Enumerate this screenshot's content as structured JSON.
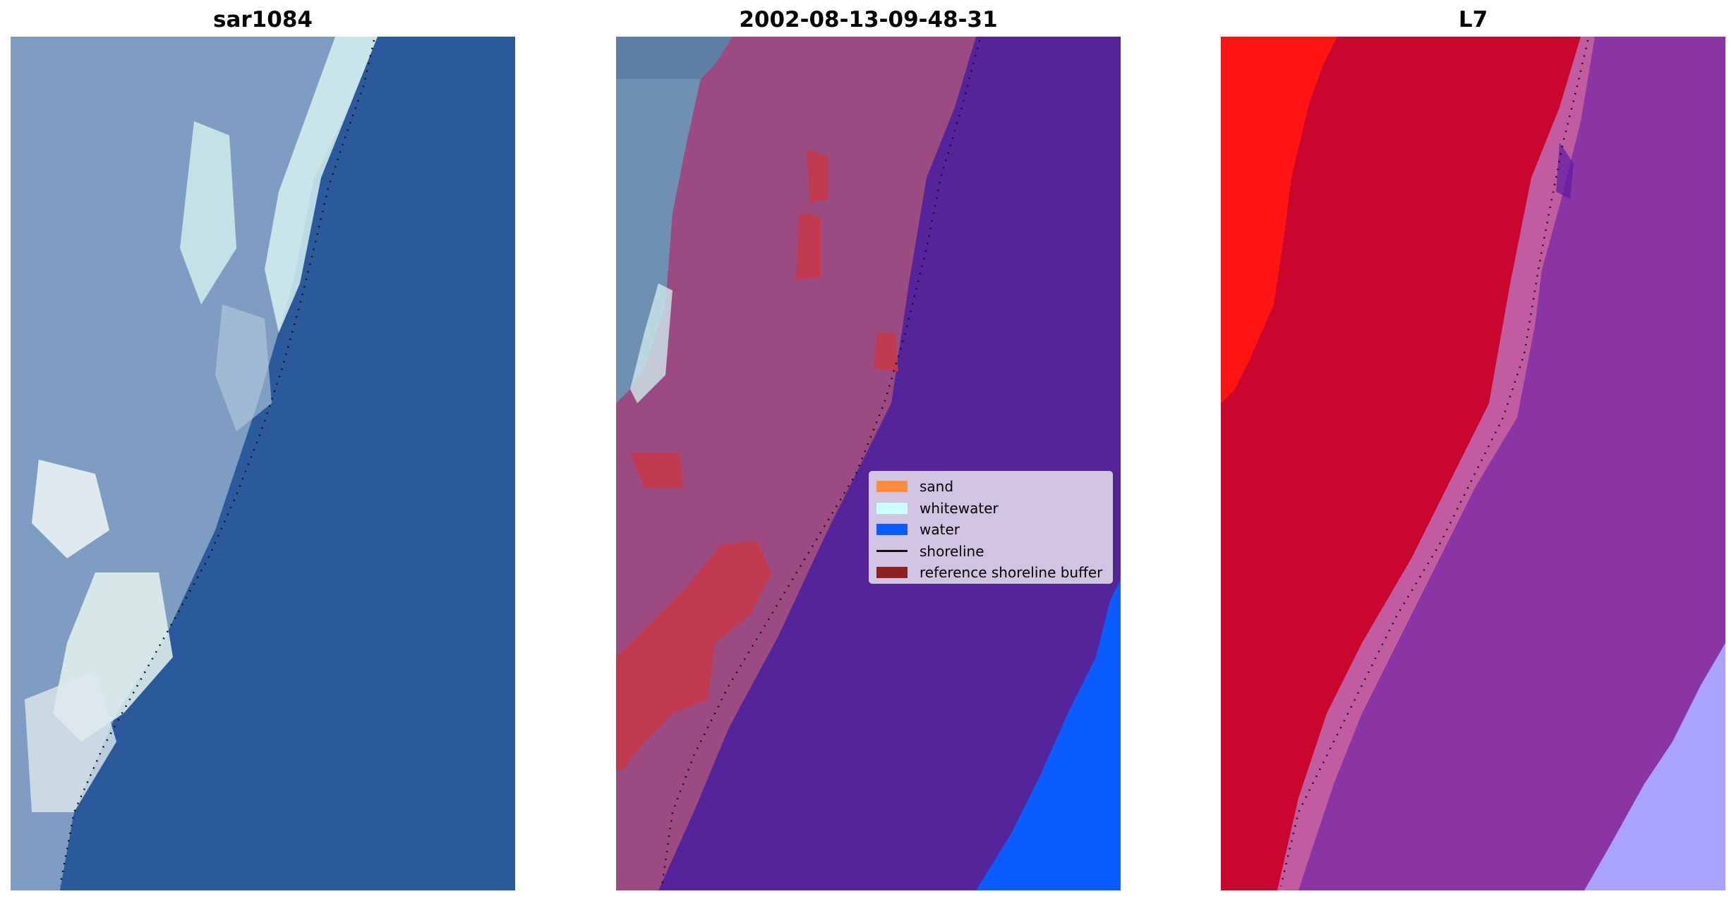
{
  "panels": [
    {
      "title": "sar1084",
      "kind": "rgb"
    },
    {
      "title": "2002-08-13-09-48-31",
      "kind": "classified"
    },
    {
      "title": "L7",
      "kind": "index"
    }
  ],
  "legend": {
    "items": [
      {
        "label": "sand",
        "color": "#ff8c3a",
        "kind": "patch"
      },
      {
        "label": "whitewater",
        "color": "#ccffff",
        "kind": "patch"
      },
      {
        "label": "water",
        "color": "#0a5cff",
        "kind": "patch"
      },
      {
        "label": "shoreline",
        "color": "#111111",
        "kind": "line"
      },
      {
        "label": "reference shoreline buffer",
        "color": "#8e2020",
        "kind": "patch"
      }
    ]
  },
  "colors": {
    "ocean_rgb": "#2b5a9c",
    "land_rgb": "#7f9cc2",
    "surf_rgb": "#d7f2f1",
    "land_class": "#9b4a82",
    "water_class": "#55249a",
    "buffer": "#c0394f",
    "bright_water": "#0a5cff",
    "index_red": "#c8062e",
    "index_bright_red": "#ff1414",
    "index_purple": "#8b35a4",
    "index_lavender": "#a9a3ff",
    "shoreline": "#111111"
  }
}
